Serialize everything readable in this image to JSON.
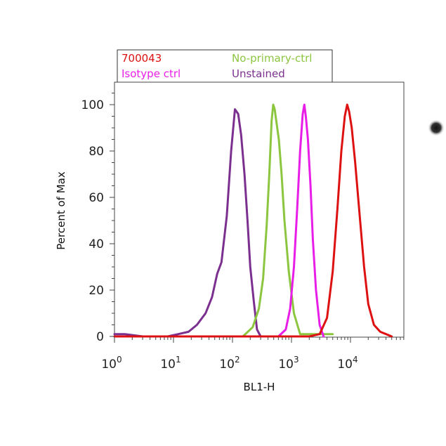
{
  "chart_data": {
    "type": "line",
    "xlabel": "BL1-H",
    "ylabel": "Percent of Max",
    "x_scale": "log",
    "xlim": [
      1,
      60000
    ],
    "ylim": [
      0,
      108
    ],
    "x_ticks": [
      {
        "value": 1,
        "base": "10",
        "exp": "0"
      },
      {
        "value": 10,
        "base": "10",
        "exp": "1"
      },
      {
        "value": 100,
        "base": "10",
        "exp": "2"
      },
      {
        "value": 1000,
        "base": "10",
        "exp": "3"
      },
      {
        "value": 10000,
        "base": "10",
        "exp": "4"
      }
    ],
    "y_ticks": [
      "0",
      "20",
      "40",
      "60",
      "80",
      "100"
    ],
    "grid": false,
    "legend_position": "top",
    "series": [
      {
        "name": "Unstained",
        "color": "#7b2f8f",
        "x": [
          1,
          1.5,
          3,
          8,
          12,
          18,
          25,
          35,
          45,
          55,
          65,
          80,
          95,
          110,
          125,
          140,
          160,
          180,
          200,
          230,
          260,
          300
        ],
        "y": [
          1,
          1,
          0,
          0,
          1,
          2,
          5,
          10,
          17,
          27,
          32,
          52,
          80,
          98,
          96,
          87,
          70,
          50,
          30,
          15,
          3,
          0
        ]
      },
      {
        "name": "No-primary-ctrl",
        "color": "#8cc63f",
        "x": [
          150,
          220,
          280,
          330,
          380,
          420,
          460,
          490,
          520,
          560,
          610,
          680,
          760,
          900,
          1100,
          1400,
          5000
        ],
        "y": [
          0,
          4,
          12,
          25,
          48,
          70,
          93,
          100,
          98,
          92,
          85,
          70,
          50,
          28,
          10,
          1,
          1
        ]
      },
      {
        "name": "Isotype ctrl",
        "color": "#e81ee8",
        "x": [
          600,
          800,
          950,
          1100,
          1250,
          1400,
          1550,
          1650,
          1750,
          1900,
          2100,
          2300,
          2600,
          3000,
          3500
        ],
        "y": [
          0,
          3,
          12,
          30,
          55,
          80,
          96,
          100,
          95,
          85,
          65,
          42,
          20,
          5,
          0
        ]
      },
      {
        "name": "700043",
        "color": "#dd1111",
        "x": [
          1,
          10,
          100,
          1000,
          2000,
          3000,
          4000,
          5000,
          6000,
          7000,
          8000,
          8800,
          9500,
          10500,
          12000,
          14000,
          17000,
          20000,
          25000,
          32000,
          40000,
          50000
        ],
        "y": [
          0,
          0,
          0,
          0,
          0,
          1,
          8,
          28,
          55,
          80,
          95,
          100,
          97,
          90,
          75,
          55,
          30,
          14,
          5,
          2,
          1,
          0
        ]
      }
    ],
    "legend": [
      {
        "label": "700043",
        "color": "#dd1111"
      },
      {
        "label": "No-primary-ctrl",
        "color": "#8cc63f"
      },
      {
        "label": "Isotype ctrl",
        "color": "#e81ee8"
      },
      {
        "label": "Unstained",
        "color": "#7b2f8f"
      }
    ]
  }
}
